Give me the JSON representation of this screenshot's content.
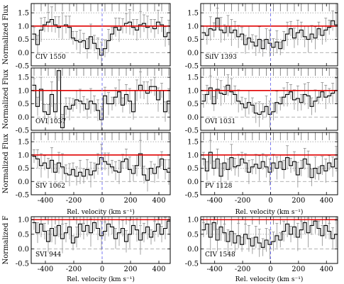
{
  "chart_data": [
    {
      "type": "line",
      "panel": "CIV 1550",
      "col": 0,
      "row": 0,
      "ylabel": "Normalized Flux",
      "xlabel": "",
      "xlim": [
        -500,
        480
      ],
      "ylim": [
        -0.5,
        1.85
      ],
      "yticks": [
        -0.5,
        0.0,
        0.5,
        1.0,
        1.5
      ],
      "xticks": [
        -400,
        -200,
        0,
        200,
        400
      ],
      "continuum": 1.0,
      "zero_velocity": 0,
      "x": [
        -480,
        -455,
        -430,
        -405,
        -380,
        -355,
        -330,
        -305,
        -280,
        -255,
        -230,
        -205,
        -180,
        -155,
        -130,
        -105,
        -80,
        -55,
        -30,
        -5,
        20,
        45,
        70,
        95,
        120,
        145,
        170,
        195,
        220,
        245,
        270,
        295,
        320,
        345,
        370,
        395,
        420,
        445,
        470
      ],
      "y": [
        0.7,
        0.3,
        0.85,
        1.05,
        1.15,
        1.25,
        1.05,
        0.95,
        1.0,
        1.05,
        0.95,
        0.55,
        0.45,
        0.4,
        0.45,
        0.15,
        0.6,
        0.35,
        0.15,
        -0.1,
        0.15,
        0.45,
        0.7,
        0.95,
        0.85,
        1.0,
        1.1,
        1.15,
        0.95,
        0.85,
        1.05,
        1.1,
        0.95,
        1.0,
        0.9,
        1.15,
        1.05,
        0.6,
        0.75
      ]
    },
    {
      "type": "line",
      "panel": "SiIV 1393",
      "col": 1,
      "row": 0,
      "ylabel": "",
      "xlabel": "",
      "xlim": [
        -500,
        480
      ],
      "ylim": [
        -0.5,
        1.85
      ],
      "yticks": [
        -0.5,
        0.0,
        0.5,
        1.0,
        1.5
      ],
      "xticks": [
        -400,
        -200,
        0,
        200,
        400
      ],
      "continuum": 1.0,
      "zero_velocity": 0,
      "x": [
        -480,
        -455,
        -430,
        -405,
        -380,
        -355,
        -330,
        -305,
        -280,
        -255,
        -230,
        -205,
        -180,
        -155,
        -130,
        -105,
        -80,
        -55,
        -30,
        -5,
        20,
        45,
        70,
        95,
        120,
        145,
        170,
        195,
        220,
        245,
        270,
        295,
        320,
        345,
        370,
        395,
        420,
        445,
        470
      ],
      "y": [
        0.75,
        0.65,
        0.9,
        0.85,
        1.3,
        0.85,
        0.75,
        1.0,
        0.75,
        0.85,
        0.6,
        0.7,
        0.3,
        0.55,
        0.4,
        0.25,
        0.5,
        0.15,
        0.5,
        0.35,
        0.2,
        0.4,
        0.15,
        0.45,
        0.7,
        0.9,
        0.55,
        0.75,
        0.85,
        0.6,
        0.5,
        0.7,
        0.55,
        0.9,
        0.65,
        0.85,
        0.95,
        1.2,
        1.05
      ]
    },
    {
      "type": "line",
      "panel": "OVI 1037",
      "col": 0,
      "row": 1,
      "ylabel": "Normalized Flux",
      "xlabel": "",
      "xlim": [
        -500,
        480
      ],
      "ylim": [
        -0.5,
        1.85
      ],
      "yticks": [
        -0.5,
        0.0,
        0.5,
        1.0,
        1.5
      ],
      "xticks": [
        -400,
        -200,
        0,
        200,
        400
      ],
      "continuum": 1.0,
      "zero_velocity": 0,
      "x": [
        -480,
        -455,
        -430,
        -405,
        -380,
        -355,
        -330,
        -305,
        -280,
        -255,
        -230,
        -205,
        -180,
        -155,
        -130,
        -105,
        -80,
        -55,
        -30,
        -5,
        20,
        45,
        70,
        95,
        120,
        145,
        170,
        195,
        220,
        245,
        270,
        295,
        320,
        345,
        370,
        395,
        420,
        445,
        470
      ],
      "y": [
        1.2,
        0.4,
        1.05,
        0.2,
        0.1,
        0.85,
        0.2,
        1.75,
        -0.4,
        0.4,
        0.3,
        0.45,
        0.65,
        0.6,
        0.5,
        0.3,
        0.6,
        0.5,
        0.25,
        -0.1,
        0.8,
        0.5,
        0.5,
        0.75,
        0.95,
        0.45,
        0.85,
        0.6,
        0.2,
        1.0,
        1.2,
        1.0,
        0.9,
        1.15,
        1.15,
        0.65,
        1.0,
        0.2,
        0.6
      ]
    },
    {
      "type": "line",
      "panel": "OVI 1031",
      "col": 1,
      "row": 1,
      "ylabel": "",
      "xlabel": "",
      "xlim": [
        -500,
        480
      ],
      "ylim": [
        -0.5,
        1.85
      ],
      "yticks": [
        -0.5,
        0.0,
        0.5,
        1.0,
        1.5
      ],
      "xticks": [
        -400,
        -200,
        0,
        200,
        400
      ],
      "continuum": 1.0,
      "zero_velocity": 0,
      "x": [
        -480,
        -455,
        -430,
        -405,
        -380,
        -355,
        -330,
        -305,
        -280,
        -255,
        -230,
        -205,
        -180,
        -155,
        -130,
        -105,
        -80,
        -55,
        -30,
        -5,
        20,
        45,
        70,
        95,
        120,
        145,
        170,
        195,
        220,
        245,
        270,
        295,
        320,
        345,
        370,
        395,
        420,
        445,
        470
      ],
      "y": [
        0.6,
        0.85,
        1.1,
        0.5,
        1.05,
        0.9,
        0.85,
        1.2,
        0.95,
        0.85,
        0.6,
        0.5,
        0.35,
        0.55,
        0.45,
        0.15,
        0.1,
        0.2,
        0.4,
        0.1,
        0.2,
        0.55,
        0.5,
        0.75,
        0.85,
        0.95,
        0.65,
        0.7,
        0.55,
        0.85,
        0.8,
        0.4,
        0.6,
        0.75,
        0.95,
        0.75,
        0.8,
        0.9,
        1.0
      ]
    },
    {
      "type": "line",
      "panel": "SIV 1062",
      "col": 0,
      "row": 2,
      "ylabel": "Normalized Flux",
      "xlabel": "Rel. velocity (km s⁻¹)",
      "xlim": [
        -500,
        480
      ],
      "ylim": [
        -0.5,
        1.85
      ],
      "yticks": [
        -0.5,
        0.0,
        0.5,
        1.0,
        1.5
      ],
      "xticks": [
        -400,
        -200,
        0,
        200,
        400
      ],
      "continuum": 1.0,
      "zero_velocity": 0,
      "x": [
        -480,
        -455,
        -430,
        -405,
        -380,
        -355,
        -330,
        -305,
        -280,
        -255,
        -230,
        -205,
        -180,
        -155,
        -130,
        -105,
        -80,
        -55,
        -30,
        -5,
        20,
        45,
        70,
        95,
        120,
        145,
        170,
        195,
        220,
        245,
        270,
        295,
        320,
        345,
        370,
        395,
        420,
        445,
        470
      ],
      "y": [
        0.95,
        0.85,
        0.6,
        0.7,
        0.5,
        0.8,
        0.35,
        0.7,
        0.55,
        0.3,
        0.25,
        0.45,
        0.2,
        0.35,
        0.2,
        0.45,
        0.25,
        0.4,
        0.65,
        0.9,
        0.75,
        0.65,
        0.55,
        0.4,
        0.35,
        0.75,
        0.85,
        0.45,
        0.3,
        0.6,
        1.05,
        0.25,
        0.05,
        0.5,
        0.3,
        0.55,
        0.85,
        0.45,
        0.35
      ]
    },
    {
      "type": "line",
      "panel": "PV 1128",
      "col": 1,
      "row": 2,
      "ylabel": "",
      "xlabel": "Rel. velocity (km s⁻¹)",
      "xlim": [
        -500,
        480
      ],
      "ylim": [
        -0.5,
        1.85
      ],
      "yticks": [
        -0.5,
        0.0,
        0.5,
        1.0,
        1.5
      ],
      "xticks": [
        -400,
        -200,
        0,
        200,
        400
      ],
      "continuum": 1.0,
      "zero_velocity": 0,
      "x": [
        -480,
        -455,
        -430,
        -405,
        -380,
        -355,
        -330,
        -305,
        -280,
        -255,
        -230,
        -205,
        -180,
        -155,
        -130,
        -105,
        -80,
        -55,
        -30,
        -5,
        20,
        45,
        70,
        95,
        120,
        145,
        170,
        195,
        220,
        245,
        270,
        295,
        320,
        345,
        370,
        395,
        420,
        445,
        470
      ],
      "y": [
        0.85,
        0.4,
        1.1,
        0.5,
        0.85,
        0.2,
        0.7,
        0.45,
        0.9,
        0.55,
        0.6,
        0.85,
        0.7,
        0.35,
        0.55,
        0.65,
        0.5,
        0.75,
        0.55,
        0.35,
        0.7,
        0.5,
        0.75,
        0.45,
        0.9,
        0.6,
        0.75,
        0.25,
        0.5,
        0.85,
        0.65,
        0.15,
        0.5,
        0.3,
        0.6,
        0.4,
        0.7,
        0.55,
        0.85
      ]
    },
    {
      "type": "line",
      "panel": "SVI 944",
      "col": 0,
      "row": 3,
      "ylabel": "Normalized F",
      "xlabel": "Rel. velocity (km s⁻¹)",
      "xlim": [
        -500,
        480
      ],
      "ylim": [
        -0.5,
        1.1
      ],
      "yticks": [
        -0.5,
        0.0,
        0.5,
        1.0
      ],
      "xticks": [
        -400,
        -200,
        0,
        200,
        400
      ],
      "continuum": 1.0,
      "zero_velocity": 0,
      "x": [
        -480,
        -455,
        -430,
        -405,
        -380,
        -355,
        -330,
        -305,
        -280,
        -255,
        -230,
        -205,
        -180,
        -155,
        -130,
        -105,
        -80,
        -55,
        -30,
        -5,
        20,
        45,
        70,
        95,
        120,
        145,
        170,
        195,
        220,
        245,
        270,
        295,
        320,
        345,
        370,
        395,
        420,
        445,
        470
      ],
      "y": [
        0.9,
        0.55,
        0.85,
        0.6,
        0.25,
        0.7,
        0.45,
        0.8,
        0.35,
        0.55,
        0.75,
        0.2,
        0.4,
        0.85,
        0.6,
        0.8,
        0.55,
        0.9,
        0.7,
        0.45,
        0.6,
        0.85,
        0.75,
        0.35,
        0.55,
        0.7,
        0.25,
        0.5,
        0.8,
        0.65,
        0.3,
        0.55,
        0.75,
        0.4,
        0.6,
        0.85,
        0.5,
        0.7,
        0.95
      ]
    },
    {
      "type": "line",
      "panel": "CIV 1548",
      "col": 1,
      "row": 3,
      "ylabel": "",
      "xlabel": "Rel. velocity (km s⁻¹)",
      "xlim": [
        -500,
        480
      ],
      "ylim": [
        -0.5,
        1.1
      ],
      "yticks": [
        -0.5,
        0.0,
        0.5,
        1.0
      ],
      "xticks": [
        -400,
        -200,
        0,
        200,
        400
      ],
      "continuum": 1.0,
      "zero_velocity": 0,
      "x": [
        -480,
        -455,
        -430,
        -405,
        -380,
        -355,
        -330,
        -305,
        -280,
        -255,
        -230,
        -205,
        -180,
        -155,
        -130,
        -105,
        -80,
        -55,
        -30,
        -5,
        20,
        45,
        70,
        95,
        120,
        145,
        170,
        195,
        220,
        245,
        270,
        295,
        320,
        345,
        370,
        395,
        420,
        445,
        470
      ],
      "y": [
        0.65,
        0.85,
        0.4,
        0.9,
        0.3,
        0.75,
        0.55,
        0.25,
        0.6,
        0.2,
        0.45,
        0.15,
        0.5,
        0.35,
        0.1,
        0.4,
        0.2,
        0.05,
        0.3,
        0.15,
        0.25,
        0.45,
        0.3,
        0.6,
        0.85,
        0.5,
        0.75,
        0.4,
        0.65,
        0.9,
        0.55,
        0.8,
        0.95,
        0.7,
        0.45,
        0.8,
        0.6,
        0.35,
        0.5
      ]
    }
  ]
}
